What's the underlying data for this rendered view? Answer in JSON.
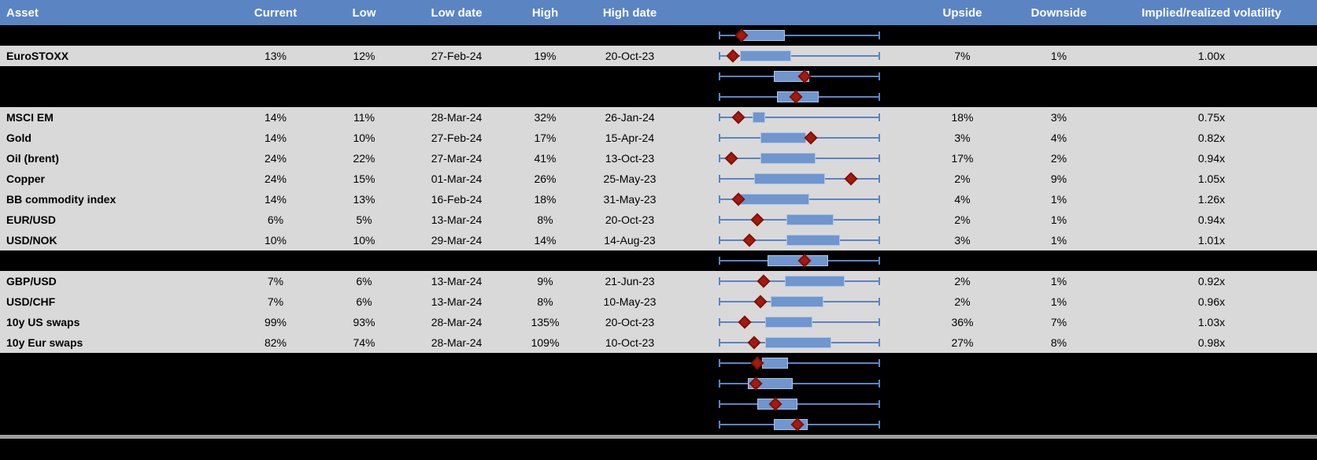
{
  "colors": {
    "header_bg": "#5b84c3",
    "header_text": "#ffffff",
    "data_row_bg": "#d9d9d9",
    "hidden_row_bg": "#000000",
    "whisker_blue": "#5b84c4",
    "box_fill": "#6f96ce",
    "box_border": "#b0c4e4",
    "marker_red": "#a6190f",
    "separator_gray": "#9d9d9d"
  },
  "header": {
    "columns": [
      {
        "key": "asset",
        "label": "Asset"
      },
      {
        "key": "current",
        "label": "Current"
      },
      {
        "key": "low",
        "label": "Low"
      },
      {
        "key": "low_date",
        "label": "Low date"
      },
      {
        "key": "high",
        "label": "High"
      },
      {
        "key": "high_date",
        "label": "High date"
      },
      {
        "key": "chart",
        "label": ""
      },
      {
        "key": "upside",
        "label": "Upside"
      },
      {
        "key": "downside",
        "label": "Downside"
      },
      {
        "key": "implied",
        "label": "Implied/realized volatility"
      }
    ]
  },
  "chart_data": {
    "type": "table",
    "title": "Implied volatility overview with normalized low-high box plots",
    "columns": [
      "Asset",
      "Current",
      "Low",
      "Low date",
      "High",
      "High date",
      "Upside",
      "Downside",
      "Implied/realized volatility"
    ],
    "boxplot_layout": {
      "note": "Each row has a horizontal whisker spanning the same normalized 0-1 range; box and diamond marker positions are fractions of that span.",
      "whisker_range": [
        0,
        1
      ],
      "marker_shape": "diamond"
    },
    "rows": [
      {
        "kind": "hidden",
        "box": {
          "q1": 0.15,
          "q3": 0.41,
          "marker": 0.14
        }
      },
      {
        "kind": "data",
        "asset": "EuroSTOXX",
        "current": "13%",
        "low": "12%",
        "low_date": "27-Feb-24",
        "high": "19%",
        "high_date": "20-Oct-23",
        "upside": "7%",
        "downside": "1%",
        "implied": "1.00x",
        "box": {
          "q1": 0.13,
          "q3": 0.45,
          "marker": 0.09
        }
      },
      {
        "kind": "hidden",
        "box": {
          "q1": 0.34,
          "q3": 0.56,
          "marker": 0.53
        }
      },
      {
        "kind": "hidden",
        "box": {
          "q1": 0.36,
          "q3": 0.62,
          "marker": 0.48
        }
      },
      {
        "kind": "data",
        "asset": "MSCI EM",
        "current": "14%",
        "low": "11%",
        "low_date": "28-Mar-24",
        "high": "32%",
        "high_date": "26-Jan-24",
        "upside": "18%",
        "downside": "3%",
        "implied": "0.75x",
        "box": {
          "q1": 0.21,
          "q3": 0.29,
          "marker": 0.12
        }
      },
      {
        "kind": "data",
        "asset": "Gold",
        "current": "14%",
        "low": "10%",
        "low_date": "27-Feb-24",
        "high": "17%",
        "high_date": "15-Apr-24",
        "upside": "3%",
        "downside": "4%",
        "implied": "0.82x",
        "box": {
          "q1": 0.26,
          "q3": 0.54,
          "marker": 0.57
        }
      },
      {
        "kind": "data",
        "asset": "Oil (brent)",
        "current": "24%",
        "low": "22%",
        "low_date": "27-Mar-24",
        "high": "41%",
        "high_date": "13-Oct-23",
        "upside": "17%",
        "downside": "2%",
        "implied": "0.94x",
        "box": {
          "q1": 0.26,
          "q3": 0.6,
          "marker": 0.08
        }
      },
      {
        "kind": "data",
        "asset": "Copper",
        "current": "24%",
        "low": "15%",
        "low_date": "01-Mar-24",
        "high": "26%",
        "high_date": "25-May-23",
        "upside": "2%",
        "downside": "9%",
        "implied": "1.05x",
        "box": {
          "q1": 0.22,
          "q3": 0.66,
          "marker": 0.82
        }
      },
      {
        "kind": "data",
        "asset": "BB commodity index",
        "current": "14%",
        "low": "13%",
        "low_date": "16-Feb-24",
        "high": "18%",
        "high_date": "31-May-23",
        "upside": "4%",
        "downside": "1%",
        "implied": "1.26x",
        "box": {
          "q1": 0.13,
          "q3": 0.56,
          "marker": 0.12
        }
      },
      {
        "kind": "data",
        "asset": "EUR/USD",
        "current": "6%",
        "low": "5%",
        "low_date": "13-Mar-24",
        "high": "8%",
        "high_date": "20-Oct-23",
        "upside": "2%",
        "downside": "1%",
        "implied": "0.94x",
        "box": {
          "q1": 0.42,
          "q3": 0.71,
          "marker": 0.24
        }
      },
      {
        "kind": "data",
        "asset": "USD/NOK",
        "current": "10%",
        "low": "10%",
        "low_date": "29-Mar-24",
        "high": "14%",
        "high_date": "14-Aug-23",
        "upside": "3%",
        "downside": "1%",
        "implied": "1.01x",
        "box": {
          "q1": 0.42,
          "q3": 0.75,
          "marker": 0.19
        }
      },
      {
        "kind": "hidden",
        "box": {
          "q1": 0.3,
          "q3": 0.68,
          "marker": 0.53
        }
      },
      {
        "kind": "data",
        "asset": "GBP/USD",
        "current": "7%",
        "low": "6%",
        "low_date": "13-Mar-24",
        "high": "9%",
        "high_date": "21-Jun-23",
        "upside": "2%",
        "downside": "1%",
        "implied": "0.92x",
        "box": {
          "q1": 0.41,
          "q3": 0.78,
          "marker": 0.28
        }
      },
      {
        "kind": "data",
        "asset": "USD/CHF",
        "current": "7%",
        "low": "6%",
        "low_date": "13-Mar-24",
        "high": "8%",
        "high_date": "10-May-23",
        "upside": "2%",
        "downside": "1%",
        "implied": "0.96x",
        "box": {
          "q1": 0.32,
          "q3": 0.65,
          "marker": 0.26
        }
      },
      {
        "kind": "data",
        "asset": "10y US swaps",
        "current": "99%",
        "low": "93%",
        "low_date": "28-Mar-24",
        "high": "135%",
        "high_date": "20-Oct-23",
        "upside": "36%",
        "downside": "7%",
        "implied": "1.03x",
        "box": {
          "q1": 0.29,
          "q3": 0.58,
          "marker": 0.16
        }
      },
      {
        "kind": "data",
        "asset": "10y Eur swaps",
        "current": "82%",
        "low": "74%",
        "low_date": "28-Mar-24",
        "high": "109%",
        "high_date": "10-Oct-23",
        "upside": "27%",
        "downside": "8%",
        "implied": "0.98x",
        "box": {
          "q1": 0.29,
          "q3": 0.7,
          "marker": 0.22
        }
      },
      {
        "kind": "hidden",
        "box": {
          "q1": 0.27,
          "q3": 0.43,
          "marker": 0.24
        }
      },
      {
        "kind": "hidden",
        "box": {
          "q1": 0.18,
          "q3": 0.46,
          "marker": 0.23
        }
      },
      {
        "kind": "hidden",
        "box": {
          "q1": 0.24,
          "q3": 0.49,
          "marker": 0.35
        }
      },
      {
        "kind": "hidden",
        "box": {
          "q1": 0.34,
          "q3": 0.55,
          "marker": 0.49
        }
      }
    ]
  }
}
